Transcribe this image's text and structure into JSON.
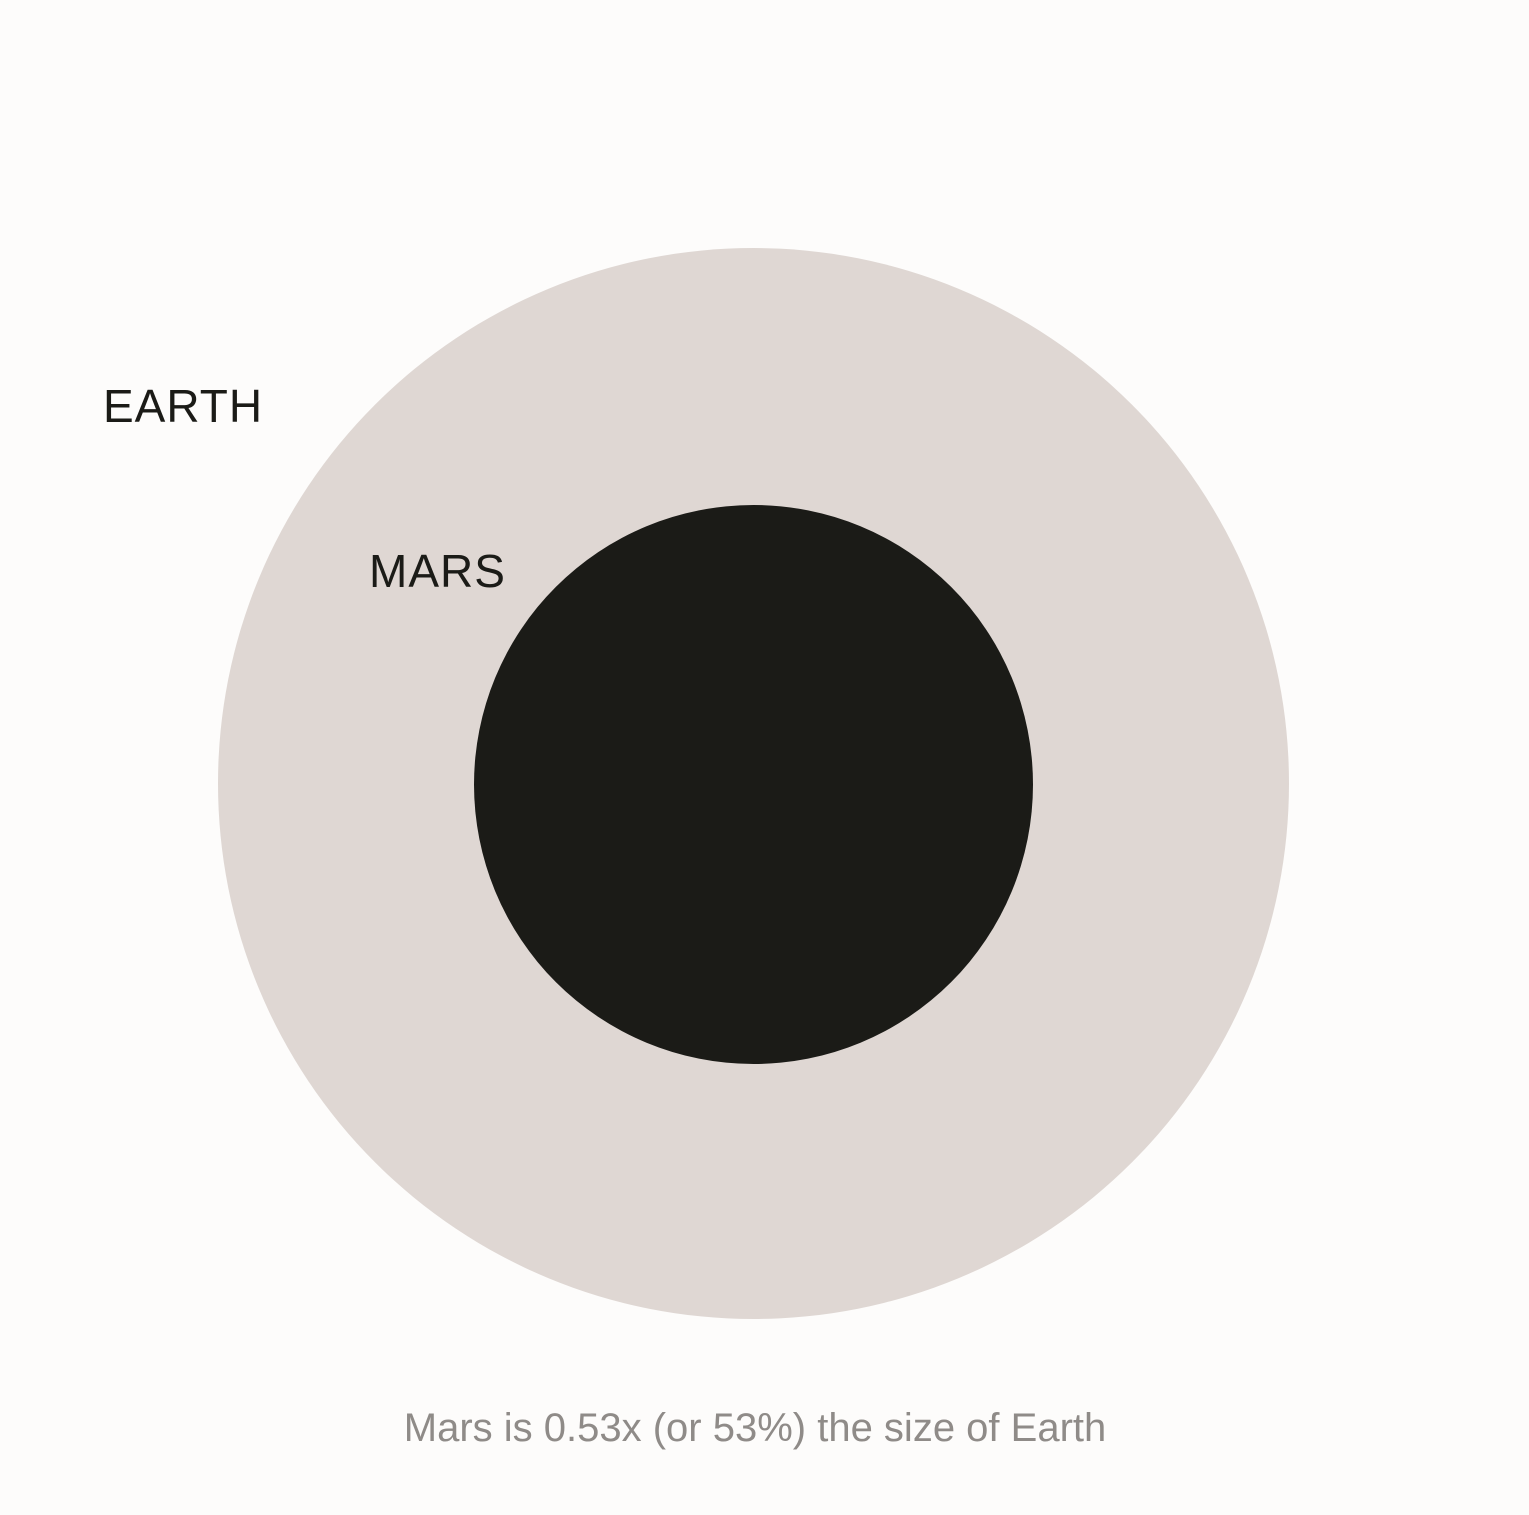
{
  "labels": {
    "earth": "EARTH",
    "mars": "MARS"
  },
  "caption": "Mars is 0.53x (or 53%) the size of Earth",
  "colors": {
    "background": "#fdfcfb",
    "earth": "#dfd7d3",
    "mars": "#1b1b17",
    "label_text": "#1b1b17",
    "caption_text": "#8f8b88"
  }
}
